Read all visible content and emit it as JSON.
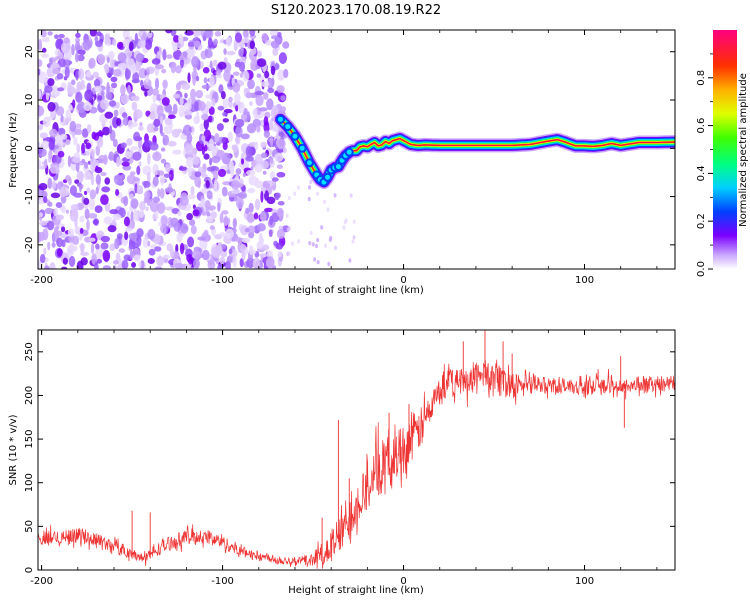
{
  "title": "S120.2023.170.08.19.R22",
  "chart_data": [
    {
      "type": "heatmap",
      "xlabel": "Height of straight line (km)",
      "ylabel": "Frequency (Hz)",
      "xlim": [
        -202,
        150
      ],
      "ylim": [
        -25,
        24.5
      ],
      "xticks": [
        -200,
        -100,
        0,
        100
      ],
      "yticks": [
        -20,
        -10,
        0,
        10,
        20
      ],
      "description_noise_region_x": [
        -202,
        -65
      ],
      "trace": {
        "x": [
          -68,
          -64,
          -60,
          -56,
          -52,
          -48,
          -46,
          -44,
          -42,
          -40,
          -38,
          -36,
          -34,
          -32,
          -30,
          -28,
          -26,
          -24,
          -22,
          -20,
          -18,
          -16,
          -14,
          -12,
          -10,
          -8,
          -6,
          -4,
          -2,
          0,
          4,
          8,
          12,
          20,
          30,
          40,
          50,
          60,
          70,
          80,
          85,
          90,
          95,
          100,
          105,
          110,
          115,
          120,
          130,
          140,
          150
        ],
        "y": [
          6,
          4.5,
          2.5,
          0,
          -3,
          -5.5,
          -6.5,
          -7,
          -6,
          -4.5,
          -4,
          -3.8,
          -2.5,
          -1.5,
          -0.8,
          -0.5,
          -0.5,
          0.3,
          0.5,
          0.3,
          0.8,
          1.2,
          0.5,
          0.7,
          1.4,
          1.0,
          1.6,
          1.8,
          2.0,
          1.6,
          0.8,
          0.6,
          0.7,
          0.6,
          0.6,
          0.6,
          0.6,
          0.6,
          0.8,
          1.5,
          1.8,
          1.2,
          0.5,
          0.5,
          0.4,
          0.6,
          1.0,
          0.6,
          1.2,
          1.2,
          1.3
        ]
      },
      "colorbar": {
        "label": "Normalized spectral amplitude",
        "range": [
          0,
          1
        ],
        "ticks": [
          "0.0",
          "0.2",
          "0.4",
          "0.6",
          "0.8"
        ],
        "tick_values": [
          0,
          0.2,
          0.4,
          0.6,
          0.8
        ],
        "stops": [
          "#ffffff",
          "#7b00ff",
          "#0040ff",
          "#00e5ff",
          "#00ff40",
          "#d4ff00",
          "#ffe000",
          "#ff8000",
          "#ff0000",
          "#ff0080"
        ]
      }
    },
    {
      "type": "line",
      "xlabel": "Height of straight line (km)",
      "ylabel": "SNR (10 * v/v)",
      "xlim": [
        -202,
        150
      ],
      "ylim": [
        0,
        275
      ],
      "xticks": [
        -200,
        -100,
        0,
        100
      ],
      "yticks": [
        0,
        50,
        100,
        150,
        200,
        250
      ],
      "color": "#ee3333",
      "envelope": {
        "x": [
          -202,
          -190,
          -180,
          -170,
          -160,
          -150,
          -145,
          -140,
          -130,
          -120,
          -110,
          -100,
          -90,
          -80,
          -70,
          -60,
          -50,
          -40,
          -35,
          -30,
          -25,
          -20,
          -15,
          -10,
          -5,
          0,
          5,
          10,
          15,
          20,
          25,
          30,
          35,
          40,
          45,
          50,
          55,
          60,
          70,
          80,
          90,
          100,
          110,
          120,
          130,
          140,
          150
        ],
        "baseline": [
          35,
          38,
          40,
          35,
          28,
          18,
          14,
          18,
          30,
          38,
          38,
          32,
          22,
          16,
          12,
          10,
          12,
          25,
          40,
          60,
          80,
          100,
          110,
          120,
          130,
          140,
          150,
          165,
          185,
          205,
          215,
          215,
          218,
          222,
          225,
          220,
          218,
          215,
          212,
          212,
          210,
          210,
          212,
          210,
          212,
          212,
          214
        ],
        "spread": [
          18,
          18,
          18,
          16,
          16,
          14,
          12,
          14,
          16,
          18,
          18,
          16,
          14,
          12,
          10,
          10,
          15,
          40,
          50,
          55,
          60,
          65,
          65,
          65,
          65,
          60,
          55,
          50,
          45,
          40,
          40,
          35,
          35,
          38,
          40,
          38,
          35,
          32,
          25,
          22,
          20,
          20,
          22,
          20,
          18,
          18,
          16
        ]
      },
      "spikes": [
        {
          "x": -150,
          "y": 68
        },
        {
          "x": -140,
          "y": 66
        },
        {
          "x": -45,
          "y": 60
        },
        {
          "x": -36,
          "y": 172
        },
        {
          "x": -30,
          "y": 105
        },
        {
          "x": -20,
          "y": 125
        },
        {
          "x": -8,
          "y": 180
        },
        {
          "x": 3,
          "y": 190
        },
        {
          "x": 25,
          "y": 232
        },
        {
          "x": 33,
          "y": 262
        },
        {
          "x": 45,
          "y": 275
        },
        {
          "x": 55,
          "y": 262
        },
        {
          "x": 60,
          "y": 248
        },
        {
          "x": 120,
          "y": 245
        },
        {
          "x": 122,
          "y": 163
        }
      ]
    }
  ]
}
